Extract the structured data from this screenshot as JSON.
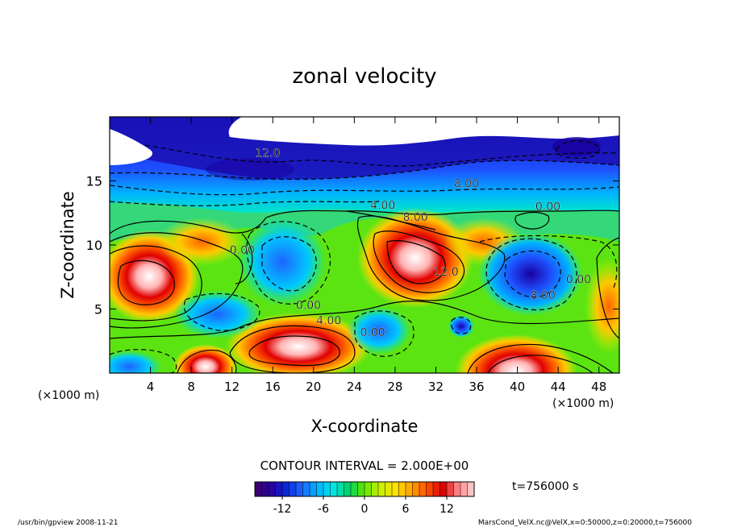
{
  "chart_data": {
    "type": "heatmap",
    "title": "zonal velocity",
    "xlabel": "X-coordinate",
    "ylabel": "Z-coordinate",
    "x_unit": "(×1000 m)",
    "y_unit": "(×1000 m)",
    "xlim": [
      0,
      50
    ],
    "ylim": [
      0,
      20
    ],
    "x_ticks": [
      4,
      8,
      12,
      16,
      20,
      24,
      28,
      32,
      36,
      40,
      44,
      48
    ],
    "y_ticks": [
      5,
      10,
      15
    ],
    "contour_interval_text": "CONTOUR INTERVAL = 2.000E+00",
    "time_text": "t=756000 s",
    "colorbar": {
      "range": [
        -16,
        16
      ],
      "ticks": [
        -12,
        -6,
        0,
        6,
        12
      ],
      "colors": [
        "#3c0064",
        "#2a00a0",
        "#0a28d8",
        "#1e64ff",
        "#00b4ff",
        "#00e6e6",
        "#00d264",
        "#64e600",
        "#c8f000",
        "#ffe100",
        "#ffa000",
        "#ff5000",
        "#dc0000",
        "#ff8c8c",
        "#ffd2d2"
      ]
    },
    "contour_labels": [
      {
        "text": "12.0",
        "x": 15.5,
        "z": 16.9
      },
      {
        "text": "8.00",
        "x": 35.0,
        "z": 14.5
      },
      {
        "text": "4.00",
        "x": 26.8,
        "z": 12.8
      },
      {
        "text": "8.00",
        "x": 30.0,
        "z": 11.9
      },
      {
        "text": "0.00",
        "x": 43.0,
        "z": 12.7
      },
      {
        "text": "0.00",
        "x": 13.0,
        "z": 9.3
      },
      {
        "text": "12.0",
        "x": 33.0,
        "z": 7.6
      },
      {
        "text": "8.00",
        "x": 42.5,
        "z": 5.8
      },
      {
        "text": "0.00",
        "x": 46.0,
        "z": 7.0
      },
      {
        "text": "0.00",
        "x": 19.5,
        "z": 5.0
      },
      {
        "text": "4.00",
        "x": 21.5,
        "z": 3.8
      },
      {
        "text": "0.00",
        "x": 25.8,
        "z": 2.9
      }
    ],
    "field_centers": [
      {
        "x": 4.0,
        "z": 7.5,
        "value": 14
      },
      {
        "x": 20.0,
        "z": 2.0,
        "value": 16
      },
      {
        "x": 30.0,
        "z": 8.5,
        "value": 17
      },
      {
        "x": 9.5,
        "z": 1.0,
        "value": 14
      },
      {
        "x": 40.0,
        "z": 1.0,
        "value": 16
      },
      {
        "x": 14.0,
        "z": 10.0,
        "value": -2
      },
      {
        "x": 40.0,
        "z": 8.0,
        "value": -10
      },
      {
        "x": 33.8,
        "z": 3.5,
        "value": -12
      },
      {
        "x": 25.0,
        "z": 17.0,
        "value": -14
      }
    ]
  },
  "footer": {
    "left": "/usr/bin/gpview  2008-11-21",
    "right": "MarsCond_VelX.nc@VelX,x=0:50000,z=0:20000,t=756000"
  }
}
